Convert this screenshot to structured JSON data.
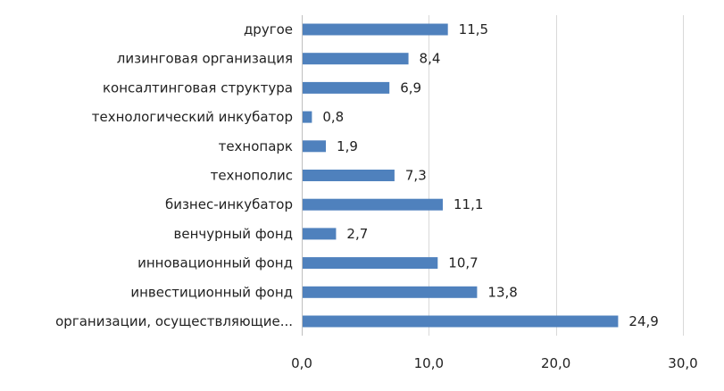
{
  "chart_data": {
    "type": "bar",
    "orientation": "horizontal",
    "categories": [
      "другое",
      "лизинговая организация",
      "консалтинговая структура",
      "технологический инкубатор",
      "технопарк",
      "технополис",
      "бизнес-инкубатор",
      "венчурный фонд",
      "инновационный фонд",
      "инвестиционный фонд",
      "организации, осуществляющие..."
    ],
    "values": [
      11.5,
      8.4,
      6.9,
      0.8,
      1.9,
      7.3,
      11.1,
      2.7,
      10.7,
      13.8,
      24.9
    ],
    "value_labels": [
      "11,5",
      "8,4",
      "6,9",
      "0,8",
      "1,9",
      "7,3",
      "11,1",
      "2,7",
      "10,7",
      "13,8",
      "24,9"
    ],
    "xlim": [
      0,
      30
    ],
    "x_ticks": [
      0,
      10,
      20,
      30
    ],
    "x_tick_labels": [
      "0,0",
      "10,0",
      "20,0",
      "30,0"
    ],
    "grid": true,
    "legend": "none",
    "colors": {
      "bar": "#4f81bd",
      "grid": "#d9d9d9",
      "text": "#222222"
    }
  }
}
